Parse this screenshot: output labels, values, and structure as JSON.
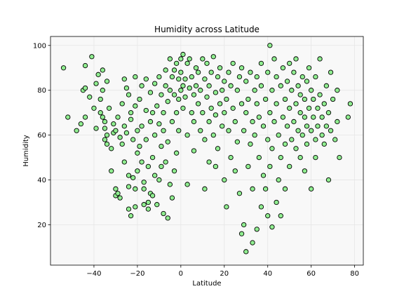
{
  "chart_data": {
    "type": "scatter",
    "title": "Humidity across Latitude",
    "xlabel": "Latitude",
    "ylabel": "Humidity",
    "xlim": [
      -60,
      84
    ],
    "ylim": [
      2,
      104
    ],
    "xticks": [
      -40,
      -20,
      0,
      20,
      40,
      60,
      80
    ],
    "yticks": [
      20,
      40,
      60,
      80,
      100
    ],
    "grid": true,
    "marker_color": "#90ee90",
    "marker_edge": "#000000",
    "background": "#f8f8f8",
    "points": [
      [
        -54,
        90
      ],
      [
        -52,
        68
      ],
      [
        -48,
        62
      ],
      [
        -46,
        65
      ],
      [
        -45,
        80
      ],
      [
        -44,
        81
      ],
      [
        -44,
        68
      ],
      [
        -44,
        91
      ],
      [
        -42,
        77
      ],
      [
        -41,
        95
      ],
      [
        -40,
        72
      ],
      [
        -39,
        63
      ],
      [
        -39,
        83
      ],
      [
        -38,
        87
      ],
      [
        -37,
        76
      ],
      [
        -37,
        70
      ],
      [
        -36,
        89
      ],
      [
        -36,
        68
      ],
      [
        -36,
        80
      ],
      [
        -35,
        66
      ],
      [
        -35,
        58
      ],
      [
        -35,
        63
      ],
      [
        -34,
        56
      ],
      [
        -34,
        60
      ],
      [
        -34,
        84
      ],
      [
        -33,
        72
      ],
      [
        -32,
        44
      ],
      [
        -32,
        54
      ],
      [
        -31,
        61
      ],
      [
        -31,
        65
      ],
      [
        -30,
        36
      ],
      [
        -30,
        33
      ],
      [
        -30,
        62
      ],
      [
        -29,
        68
      ],
      [
        -29,
        34
      ],
      [
        -28,
        32
      ],
      [
        -28,
        59
      ],
      [
        -27,
        74
      ],
      [
        -27,
        56
      ],
      [
        -26,
        85
      ],
      [
        -26,
        64
      ],
      [
        -26,
        48
      ],
      [
        -25,
        81
      ],
      [
        -25,
        61
      ],
      [
        -24,
        78
      ],
      [
        -24,
        42
      ],
      [
        -24,
        27
      ],
      [
        -24,
        37
      ],
      [
        -23,
        24
      ],
      [
        -23,
        67
      ],
      [
        -23,
        70
      ],
      [
        -22,
        58
      ],
      [
        -22,
        41
      ],
      [
        -21,
        86
      ],
      [
        -21,
        28
      ],
      [
        -21,
        73
      ],
      [
        -21,
        36
      ],
      [
        -20,
        62
      ],
      [
        -20,
        52
      ],
      [
        -20,
        44
      ],
      [
        -19,
        76
      ],
      [
        -19,
        55
      ],
      [
        -18,
        82
      ],
      [
        -18,
        48
      ],
      [
        -18,
        64
      ],
      [
        -17,
        39
      ],
      [
        -17,
        36
      ],
      [
        -17,
        29
      ],
      [
        -16,
        85
      ],
      [
        -16,
        71
      ],
      [
        -16,
        58
      ],
      [
        -15,
        27
      ],
      [
        -15,
        30
      ],
      [
        -15,
        46
      ],
      [
        -14,
        79
      ],
      [
        -14,
        66
      ],
      [
        -14,
        34
      ],
      [
        -13,
        50
      ],
      [
        -13,
        33
      ],
      [
        -13,
        70
      ],
      [
        -12,
        83
      ],
      [
        -12,
        60
      ],
      [
        -12,
        42
      ],
      [
        -11,
        29
      ],
      [
        -11,
        73
      ],
      [
        -10,
        86
      ],
      [
        -10,
        65
      ],
      [
        -10,
        40
      ],
      [
        -9,
        78
      ],
      [
        -9,
        46
      ],
      [
        -9,
        55
      ],
      [
        -8,
        25
      ],
      [
        -8,
        70
      ],
      [
        -8,
        62
      ],
      [
        -7,
        89
      ],
      [
        -7,
        82
      ],
      [
        -7,
        48
      ],
      [
        -6,
        23
      ],
      [
        -6,
        57
      ],
      [
        -6,
        75
      ],
      [
        -5,
        94
      ],
      [
        -5,
        80
      ],
      [
        -5,
        38
      ],
      [
        -4,
        86
      ],
      [
        -4,
        32
      ],
      [
        -4,
        66
      ],
      [
        -3,
        89
      ],
      [
        -3,
        78
      ],
      [
        -3,
        44
      ],
      [
        -2,
        92
      ],
      [
        -2,
        70
      ],
      [
        -2,
        52
      ],
      [
        -1,
        85
      ],
      [
        -1,
        62
      ],
      [
        -1,
        76
      ],
      [
        0,
        94
      ],
      [
        0,
        80
      ],
      [
        0,
        88
      ],
      [
        1,
        96
      ],
      [
        1,
        72
      ],
      [
        1,
        82
      ],
      [
        2,
        85
      ],
      [
        2,
        77
      ],
      [
        3,
        92
      ],
      [
        3,
        60
      ],
      [
        3,
        38
      ],
      [
        4,
        81
      ],
      [
        4,
        94
      ],
      [
        5,
        70
      ],
      [
        5,
        86
      ],
      [
        6,
        78
      ],
      [
        6,
        53
      ],
      [
        6,
        66
      ],
      [
        7,
        90
      ],
      [
        7,
        82
      ],
      [
        8,
        74
      ],
      [
        8,
        88
      ],
      [
        9,
        62
      ],
      [
        9,
        80
      ],
      [
        10,
        94
      ],
      [
        10,
        70
      ],
      [
        11,
        85
      ],
      [
        11,
        58
      ],
      [
        11,
        36
      ],
      [
        12,
        92
      ],
      [
        12,
        77
      ],
      [
        13,
        66
      ],
      [
        13,
        48
      ],
      [
        13,
        82
      ],
      [
        14,
        88
      ],
      [
        14,
        72
      ],
      [
        15,
        60
      ],
      [
        15,
        95
      ],
      [
        16,
        79
      ],
      [
        16,
        46
      ],
      [
        16,
        69
      ],
      [
        17,
        86
      ],
      [
        17,
        54
      ],
      [
        18,
        74
      ],
      [
        18,
        90
      ],
      [
        19,
        64
      ],
      [
        19,
        80
      ],
      [
        20,
        84
      ],
      [
        20,
        40
      ],
      [
        20,
        70
      ],
      [
        21,
        76
      ],
      [
        21,
        28
      ],
      [
        22,
        88
      ],
      [
        22,
        62
      ],
      [
        23,
        82
      ],
      [
        23,
        50
      ],
      [
        24,
        72
      ],
      [
        24,
        92
      ],
      [
        25,
        66
      ],
      [
        25,
        44
      ],
      [
        26,
        80
      ],
      [
        26,
        57
      ],
      [
        27,
        86
      ],
      [
        27,
        34
      ],
      [
        28,
        74
      ],
      [
        28,
        16
      ],
      [
        28,
        90
      ],
      [
        29,
        62
      ],
      [
        29,
        20
      ],
      [
        30,
        84
      ],
      [
        30,
        8
      ],
      [
        30,
        70
      ],
      [
        31,
        76
      ],
      [
        31,
        46
      ],
      [
        32,
        88
      ],
      [
        32,
        56
      ],
      [
        33,
        66
      ],
      [
        33,
        12
      ],
      [
        33,
        36
      ],
      [
        34,
        80
      ],
      [
        34,
        60
      ],
      [
        35,
        74
      ],
      [
        35,
        18
      ],
      [
        35,
        86
      ],
      [
        36,
        68
      ],
      [
        36,
        50
      ],
      [
        37,
        82
      ],
      [
        37,
        28
      ],
      [
        37,
        92
      ],
      [
        38,
        64
      ],
      [
        38,
        42
      ],
      [
        39,
        76
      ],
      [
        39,
        36
      ],
      [
        40,
        88
      ],
      [
        40,
        58
      ],
      [
        40,
        24
      ],
      [
        41,
        100
      ],
      [
        41,
        70
      ],
      [
        41,
        46
      ],
      [
        42,
        80
      ],
      [
        42,
        54
      ],
      [
        42,
        19
      ],
      [
        43,
        94
      ],
      [
        43,
        66
      ],
      [
        44,
        86
      ],
      [
        44,
        30
      ],
      [
        44,
        74
      ],
      [
        45,
        60
      ],
      [
        45,
        40
      ],
      [
        46,
        82
      ],
      [
        46,
        50
      ],
      [
        46,
        24
      ],
      [
        47,
        90
      ],
      [
        47,
        68
      ],
      [
        48,
        76
      ],
      [
        48,
        56
      ],
      [
        48,
        36
      ],
      [
        49,
        84
      ],
      [
        49,
        64
      ],
      [
        50,
        72
      ],
      [
        50,
        92
      ],
      [
        50,
        46
      ],
      [
        51,
        80
      ],
      [
        51,
        58
      ],
      [
        52,
        88
      ],
      [
        52,
        66
      ],
      [
        53,
        74
      ],
      [
        53,
        54
      ],
      [
        53,
        94
      ],
      [
        54,
        82
      ],
      [
        54,
        62
      ],
      [
        55,
        70
      ],
      [
        55,
        78
      ],
      [
        55,
        50
      ],
      [
        56,
        86
      ],
      [
        56,
        60
      ],
      [
        57,
        68
      ],
      [
        57,
        76
      ],
      [
        57,
        44
      ],
      [
        58,
        84
      ],
      [
        58,
        64
      ],
      [
        58,
        56
      ],
      [
        59,
        72
      ],
      [
        59,
        90
      ],
      [
        60,
        80
      ],
      [
        60,
        36
      ],
      [
        60,
        62
      ],
      [
        61,
        68
      ],
      [
        61,
        76
      ],
      [
        62,
        58
      ],
      [
        62,
        86
      ],
      [
        62,
        50
      ],
      [
        63,
        72
      ],
      [
        63,
        64
      ],
      [
        64,
        78
      ],
      [
        64,
        94
      ],
      [
        65,
        60
      ],
      [
        65,
        68
      ],
      [
        66,
        74
      ],
      [
        66,
        56
      ],
      [
        67,
        82
      ],
      [
        67,
        64
      ],
      [
        68,
        70
      ],
      [
        68,
        40
      ],
      [
        69,
        88
      ],
      [
        69,
        62
      ],
      [
        70,
        76
      ],
      [
        71,
        58
      ],
      [
        72,
        66
      ],
      [
        72,
        80
      ],
      [
        73,
        50
      ],
      [
        77,
        68
      ],
      [
        78,
        74
      ]
    ]
  }
}
